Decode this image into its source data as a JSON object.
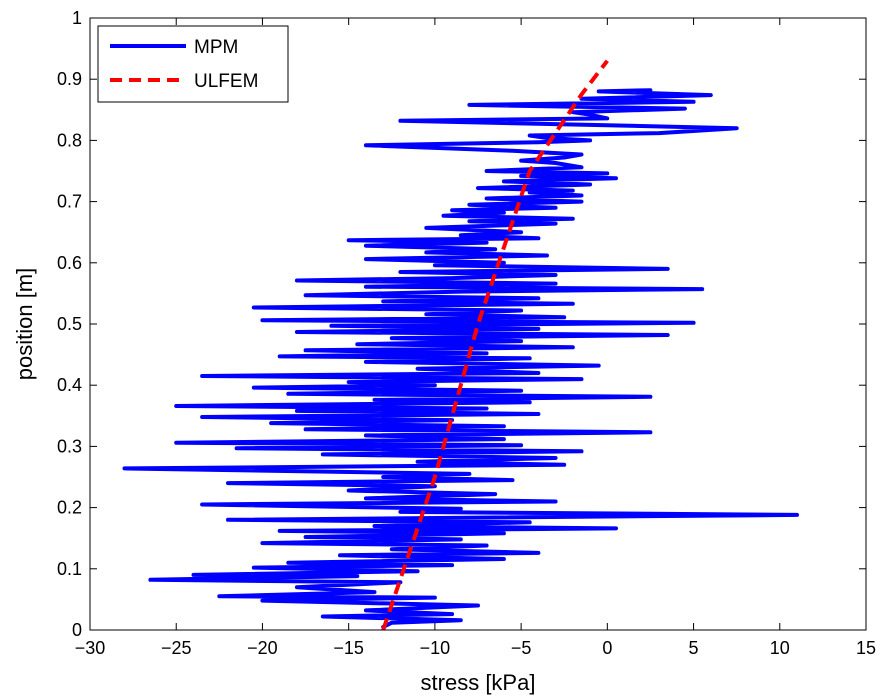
{
  "chart_data": {
    "type": "line",
    "title": "",
    "xlabel": "stress [kPa]",
    "ylabel": "position [m]",
    "xlim": [
      -30,
      15
    ],
    "ylim": [
      0,
      1
    ],
    "x_ticks": [
      -30,
      -25,
      -20,
      -15,
      -10,
      -5,
      0,
      5,
      10,
      15
    ],
    "y_ticks": [
      0,
      0.1,
      0.2,
      0.3,
      0.4,
      0.5,
      0.6,
      0.7,
      0.8,
      0.9,
      1
    ],
    "x_tick_labels": [
      "−30",
      "−25",
      "−20",
      "−15",
      "−10",
      "−5",
      "0",
      "5",
      "10",
      "15"
    ],
    "y_tick_labels": [
      "0",
      "0.1",
      "0.2",
      "0.3",
      "0.4",
      "0.5",
      "0.6",
      "0.7",
      "0.8",
      "0.9",
      "1"
    ],
    "grid": false,
    "legend": {
      "position": "top-left"
    },
    "series": [
      {
        "name": "MPM",
        "style": "solid",
        "color": "#0000ff",
        "points": [
          [
            -13,
            0.005
          ],
          [
            -12.5,
            0.012
          ],
          [
            -8.5,
            0.016
          ],
          [
            -16.5,
            0.022
          ],
          [
            -9,
            0.026
          ],
          [
            -14,
            0.032
          ],
          [
            -7.5,
            0.04
          ],
          [
            -20,
            0.048
          ],
          [
            -10,
            0.053
          ],
          [
            -22.5,
            0.055
          ],
          [
            -13.5,
            0.062
          ],
          [
            -18,
            0.07
          ],
          [
            -12,
            0.078
          ],
          [
            -26.5,
            0.082
          ],
          [
            -14.5,
            0.088
          ],
          [
            -24,
            0.09
          ],
          [
            -11,
            0.096
          ],
          [
            -20.5,
            0.102
          ],
          [
            -9,
            0.106
          ],
          [
            -18.5,
            0.11
          ],
          [
            -6,
            0.116
          ],
          [
            -15.5,
            0.122
          ],
          [
            -4,
            0.126
          ],
          [
            -12.5,
            0.132
          ],
          [
            -7,
            0.138
          ],
          [
            -20,
            0.142
          ],
          [
            -8.5,
            0.148
          ],
          [
            -17.5,
            0.152
          ],
          [
            -6,
            0.158
          ],
          [
            -19,
            0.162
          ],
          [
            0.5,
            0.166
          ],
          [
            -13.5,
            0.17
          ],
          [
            -4.5,
            0.176
          ],
          [
            -22,
            0.18
          ],
          [
            11,
            0.188
          ],
          [
            -12,
            0.193
          ],
          [
            -8.5,
            0.198
          ],
          [
            -23.5,
            0.205
          ],
          [
            -3,
            0.21
          ],
          [
            -14,
            0.215
          ],
          [
            -6.5,
            0.222
          ],
          [
            -15,
            0.228
          ],
          [
            -10,
            0.235
          ],
          [
            -22,
            0.24
          ],
          [
            -5.5,
            0.245
          ],
          [
            -13,
            0.25
          ],
          [
            -8,
            0.255
          ],
          [
            -28,
            0.264
          ],
          [
            -2.5,
            0.27
          ],
          [
            -11,
            0.275
          ],
          [
            -3,
            0.281
          ],
          [
            -16.5,
            0.287
          ],
          [
            -1.5,
            0.292
          ],
          [
            -21.5,
            0.297
          ],
          [
            -5,
            0.302
          ],
          [
            -25,
            0.306
          ],
          [
            -6,
            0.312
          ],
          [
            -14,
            0.318
          ],
          [
            2.5,
            0.323
          ],
          [
            -17.5,
            0.328
          ],
          [
            -6,
            0.333
          ],
          [
            -19.5,
            0.338
          ],
          [
            -9,
            0.343
          ],
          [
            -23.5,
            0.348
          ],
          [
            -4,
            0.353
          ],
          [
            -18,
            0.358
          ],
          [
            -7,
            0.362
          ],
          [
            -25,
            0.366
          ],
          [
            -4.5,
            0.372
          ],
          [
            -13.5,
            0.376
          ],
          [
            2.5,
            0.381
          ],
          [
            -18.5,
            0.386
          ],
          [
            -5,
            0.391
          ],
          [
            -20.5,
            0.396
          ],
          [
            -10,
            0.4
          ],
          [
            -15,
            0.405
          ],
          [
            -1.5,
            0.41
          ],
          [
            -23.5,
            0.415
          ],
          [
            -4,
            0.42
          ],
          [
            -11,
            0.427
          ],
          [
            -0.5,
            0.432
          ],
          [
            -14,
            0.438
          ],
          [
            -4.5,
            0.444
          ],
          [
            -19,
            0.447
          ],
          [
            -7,
            0.452
          ],
          [
            -17.5,
            0.457
          ],
          [
            -2,
            0.462
          ],
          [
            -14.5,
            0.467
          ],
          [
            -5,
            0.472
          ],
          [
            -12.5,
            0.477
          ],
          [
            3.5,
            0.482
          ],
          [
            -18,
            0.487
          ],
          [
            -4,
            0.492
          ],
          [
            -16,
            0.497
          ],
          [
            5,
            0.502
          ],
          [
            -20,
            0.506
          ],
          [
            -2.5,
            0.511
          ],
          [
            -10.5,
            0.516
          ],
          [
            -5,
            0.522
          ],
          [
            -20.5,
            0.527
          ],
          [
            -2,
            0.533
          ],
          [
            -13,
            0.537
          ],
          [
            -4,
            0.542
          ],
          [
            -17.5,
            0.547
          ],
          [
            -8.5,
            0.553
          ],
          [
            5.5,
            0.557
          ],
          [
            -14,
            0.561
          ],
          [
            -3,
            0.566
          ],
          [
            -18,
            0.571
          ],
          [
            -9,
            0.575
          ],
          [
            -3,
            0.58
          ],
          [
            -12,
            0.585
          ],
          [
            3.5,
            0.59
          ],
          [
            -10,
            0.596
          ],
          [
            -6,
            0.6
          ],
          [
            -14,
            0.606
          ],
          [
            -3.5,
            0.612
          ],
          [
            -10.5,
            0.617
          ],
          [
            -6.5,
            0.622
          ],
          [
            -14,
            0.628
          ],
          [
            -7,
            0.633
          ],
          [
            -15,
            0.637
          ],
          [
            -4,
            0.64
          ],
          [
            -8.5,
            0.645
          ],
          [
            -5,
            0.65
          ],
          [
            -10.5,
            0.657
          ],
          [
            -3,
            0.664
          ],
          [
            -8,
            0.668
          ],
          [
            -2,
            0.672
          ],
          [
            -9.5,
            0.677
          ],
          [
            -6,
            0.682
          ],
          [
            -9,
            0.686
          ],
          [
            -3,
            0.69
          ],
          [
            -8,
            0.695
          ],
          [
            -1.5,
            0.7
          ],
          [
            -7,
            0.705
          ],
          [
            -1.5,
            0.71
          ],
          [
            -4.5,
            0.715
          ],
          [
            -2,
            0.718
          ],
          [
            -7.5,
            0.722
          ],
          [
            -1,
            0.728
          ],
          [
            -6,
            0.733
          ],
          [
            0.5,
            0.738
          ],
          [
            -5,
            0.742
          ],
          [
            0,
            0.746
          ],
          [
            -7,
            0.75
          ],
          [
            -1.5,
            0.756
          ],
          [
            -3,
            0.763
          ],
          [
            -5,
            0.767
          ],
          [
            -2.5,
            0.772
          ],
          [
            -1.5,
            0.777
          ],
          [
            -5.5,
            0.783
          ],
          [
            -14,
            0.792
          ],
          [
            -4,
            0.797
          ],
          [
            -1,
            0.8
          ],
          [
            -3.5,
            0.804
          ],
          [
            -4.5,
            0.808
          ],
          [
            3,
            0.812
          ],
          [
            7.5,
            0.82
          ],
          [
            -2,
            0.826
          ],
          [
            -12,
            0.832
          ],
          [
            0,
            0.836
          ],
          [
            -1,
            0.842
          ],
          [
            -2,
            0.846
          ],
          [
            4.5,
            0.852
          ],
          [
            -8,
            0.858
          ],
          [
            5,
            0.863
          ],
          [
            -1.5,
            0.868
          ],
          [
            6,
            0.874
          ],
          [
            -0.5,
            0.88
          ],
          [
            2.5,
            0.882
          ]
        ]
      },
      {
        "name": "ULFEM",
        "style": "dashed",
        "color": "#ff0000",
        "points": [
          [
            -13,
            0
          ],
          [
            -10,
            0.25
          ],
          [
            -7.5,
            0.5
          ],
          [
            -4.5,
            0.75
          ],
          [
            -1.5,
            0.875
          ],
          [
            0,
            0.93
          ]
        ]
      }
    ]
  }
}
